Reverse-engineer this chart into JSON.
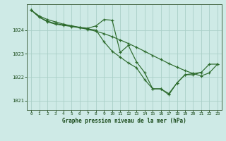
{
  "title": "Graphe pression niveau de la mer (hPa)",
  "background_color": "#ceeae6",
  "grid_color": "#aacfc8",
  "line_color": "#2d6b2d",
  "marker_color": "#2d6b2d",
  "xlim": [
    -0.5,
    23.5
  ],
  "ylim": [
    1020.6,
    1025.1
  ],
  "yticks": [
    1021,
    1022,
    1023,
    1024
  ],
  "xticks": [
    0,
    1,
    2,
    3,
    4,
    5,
    6,
    7,
    8,
    9,
    10,
    11,
    12,
    13,
    14,
    15,
    16,
    17,
    18,
    19,
    20,
    21,
    22,
    23
  ],
  "series": [
    {
      "x": [
        0,
        1,
        2,
        3,
        4,
        5,
        6,
        7,
        8,
        9,
        10,
        11,
        12,
        13,
        14,
        15,
        16,
        17,
        18,
        19,
        20,
        21
      ],
      "y": [
        1024.85,
        1024.55,
        1024.35,
        1024.25,
        1024.2,
        1024.15,
        1024.1,
        1024.05,
        1024.0,
        1023.5,
        1023.1,
        1022.85,
        1022.6,
        1022.4,
        1021.9,
        1021.5,
        1021.5,
        1021.3,
        1021.75,
        1022.1,
        1022.15,
        1022.2
      ]
    },
    {
      "x": [
        0,
        1,
        2,
        3,
        4,
        5,
        6,
        7,
        8,
        9,
        10,
        11,
        12,
        13,
        14,
        15,
        16,
        17,
        18,
        19,
        20,
        21,
        22,
        23
      ],
      "y": [
        1024.85,
        1024.6,
        1024.45,
        1024.35,
        1024.25,
        1024.18,
        1024.1,
        1024.03,
        1023.95,
        1023.85,
        1023.72,
        1023.58,
        1023.43,
        1023.27,
        1023.1,
        1022.92,
        1022.75,
        1022.58,
        1022.42,
        1022.28,
        1022.15,
        1022.05,
        1022.18,
        1022.55
      ]
    },
    {
      "x": [
        0,
        1,
        2,
        3,
        4,
        5,
        6,
        7,
        8,
        9,
        10,
        11,
        12,
        13,
        14,
        15,
        16,
        17,
        18,
        19,
        20,
        21,
        22,
        23
      ],
      "y": [
        1024.85,
        1024.55,
        1024.38,
        1024.28,
        1024.22,
        1024.18,
        1024.12,
        1024.08,
        1024.18,
        1024.45,
        1024.42,
        1023.05,
        1023.35,
        1022.65,
        1022.2,
        1021.5,
        1021.5,
        1021.25,
        1021.75,
        1022.1,
        1022.1,
        1022.2,
        1022.55,
        1022.55
      ]
    }
  ]
}
